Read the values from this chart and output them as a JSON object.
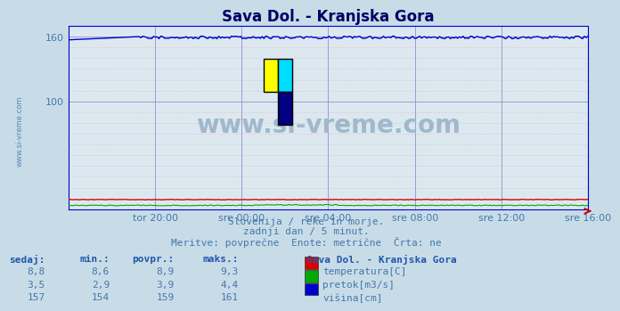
{
  "title": "Sava Dol. - Kranjska Gora",
  "bg_color": "#c8dce8",
  "plot_bg_color": "#dce8f0",
  "grid_color_v": "#9090d0",
  "grid_color_h_minor": "#e8b0b0",
  "grid_color_h_major": "#9090d0",
  "ylim": [
    0,
    170
  ],
  "ytick_labels": [
    "",
    "100",
    "160"
  ],
  "ytick_vals": [
    0,
    100,
    160
  ],
  "xlabel_ticks": [
    "tor 20:00",
    "sre 00:00",
    "sre 04:00",
    "sre 08:00",
    "sre 12:00",
    "sre 16:00"
  ],
  "title_color": "#000066",
  "title_fontsize": 12,
  "tick_label_color": "#4477aa",
  "tick_fontsize": 8,
  "watermark_text": "www.si-vreme.com",
  "watermark_color": "#a0b8cc",
  "subtitle_lines": [
    "Slovenija / reke in morje.",
    "zadnji dan / 5 minut.",
    "Meritve: povprečne  Enote: metrične  Črta: ne"
  ],
  "subtitle_color": "#4477aa",
  "subtitle_fontsize": 8,
  "table_header": [
    "sedaj:",
    "min.:",
    "povpr.:",
    "maks.:"
  ],
  "table_col5_header": "Sava Dol. - Kranjska Gora",
  "table_header_color": "#2255aa",
  "table_val_color": "#4477aa",
  "rows": [
    {
      "sedaj": "8,8",
      "min": "8,6",
      "povpr": "8,9",
      "maks": "9,3",
      "label": "temperatura[C]",
      "color": "#dd0000"
    },
    {
      "sedaj": "3,5",
      "min": "2,9",
      "povpr": "3,9",
      "maks": "4,4",
      "label": "pretok[m3/s]",
      "color": "#00aa00"
    },
    {
      "sedaj": "157",
      "min": "154",
      "povpr": "159",
      "maks": "161",
      "label": "višina[cm]",
      "color": "#0000cc"
    }
  ],
  "n_points": 288,
  "line_color_temp": "#dd0000",
  "line_color_flow": "#00aa00",
  "line_color_height": "#0000cc",
  "spine_color": "#0000cc",
  "arrow_color": "#cc0000",
  "left_watermark": "www.si-vreme.com",
  "left_watermark_color": "#4477aa"
}
